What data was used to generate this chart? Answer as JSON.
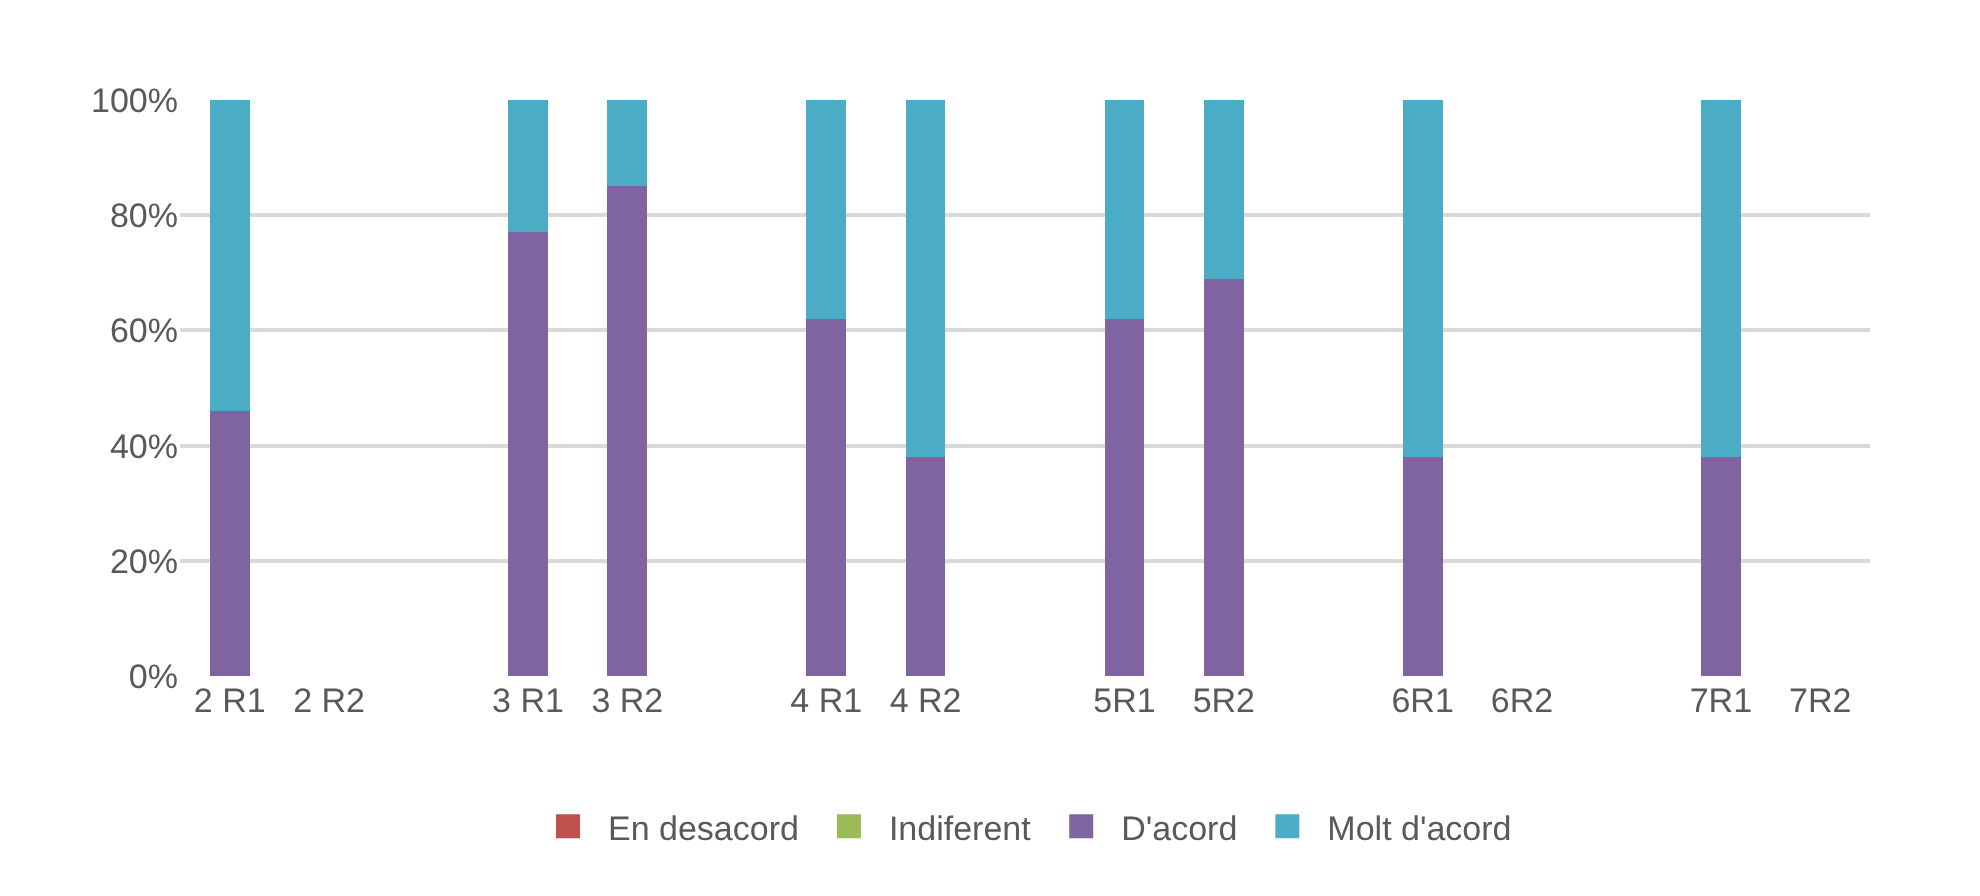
{
  "chart_data": {
    "type": "bar",
    "stacked": true,
    "categories": [
      "2 R1",
      "2 R2",
      null,
      "3 R1",
      "3 R2",
      null,
      "4 R1",
      "4 R2",
      null,
      "5R1",
      "5R2",
      null,
      "6R1",
      "6R2",
      null,
      "7R1",
      "7R2"
    ],
    "series": [
      {
        "name": "En desacord",
        "color": "#c0504d",
        "values": [
          0,
          null,
          null,
          0,
          0,
          null,
          0,
          0,
          null,
          0,
          0,
          null,
          0,
          null,
          null,
          0,
          null
        ]
      },
      {
        "name": "Indiferent",
        "color": "#9bbb59",
        "values": [
          0,
          null,
          null,
          0,
          0,
          null,
          0,
          0,
          null,
          0,
          0,
          null,
          0,
          null,
          null,
          0,
          null
        ]
      },
      {
        "name": "D'acord",
        "color": "#8064a2",
        "values": [
          46,
          null,
          null,
          77,
          85,
          null,
          62,
          38,
          null,
          62,
          69,
          null,
          38,
          null,
          null,
          38,
          null
        ]
      },
      {
        "name": "Molt d'acord",
        "color": "#4bacc6",
        "values": [
          54,
          null,
          null,
          23,
          15,
          null,
          38,
          62,
          null,
          38,
          31,
          null,
          62,
          null,
          null,
          62,
          null
        ]
      }
    ],
    "ylim": [
      0,
      100
    ],
    "yticks": [
      {
        "value": 0,
        "label": "0%"
      },
      {
        "value": 20,
        "label": "20%"
      },
      {
        "value": 40,
        "label": "40%"
      },
      {
        "value": 60,
        "label": "60%"
      },
      {
        "value": 80,
        "label": "80%"
      },
      {
        "value": 100,
        "label": "100%"
      }
    ],
    "grid": "y",
    "legend": "bottom"
  }
}
